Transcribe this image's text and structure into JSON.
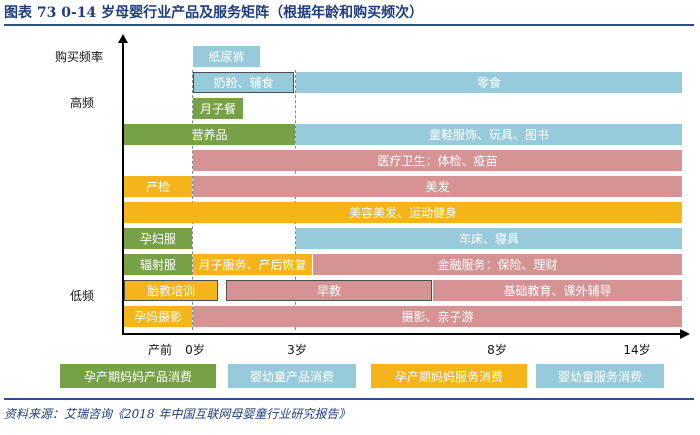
{
  "title": "图表 73   0-14 岁母婴行业产品及服务矩阵（根据年龄和购买频次）",
  "footnote": "资料来源：艾瑞咨询《2018 年中国互联网母婴童行业研究报告》",
  "y_axis": {
    "label": "购买频率",
    "high": "高频",
    "low": "低频"
  },
  "x_axis": {
    "ticks": [
      "产前",
      "0岁",
      "3岁",
      "8岁",
      "14岁"
    ]
  },
  "colors": {
    "green": "#77a146",
    "blue": "#97cbdc",
    "orange": "#f6b41b",
    "red": "#d69393"
  },
  "rows": [
    [
      {
        "label": "纸尿裤",
        "color": "blue"
      }
    ],
    [
      {
        "label": "奶粉、辅食",
        "color": "blue"
      },
      {
        "label": "零食",
        "color": "blue"
      }
    ],
    [
      {
        "label": "月子餐",
        "color": "green"
      }
    ],
    [
      {
        "label": "营养品",
        "color": "green"
      },
      {
        "label": "童鞋服饰、玩具、图书",
        "color": "blue"
      }
    ],
    [
      {
        "label": "医疗卫生：体检、疫苗",
        "color": "red"
      }
    ],
    [
      {
        "label": "产检",
        "color": "orange"
      },
      {
        "label": "美发",
        "color": "red"
      }
    ],
    [
      {
        "label": "美容美发、运动健身",
        "color": "orange"
      }
    ],
    [
      {
        "label": "孕妇服",
        "color": "green"
      },
      {
        "label": "车床、寝具",
        "color": "blue"
      }
    ],
    [
      {
        "label": "辐射服",
        "color": "green"
      },
      {
        "label": "月子服务、产后恢复",
        "color": "orange"
      },
      {
        "label": "金融服务：保险、理财",
        "color": "red"
      }
    ],
    [
      {
        "label": "胎教培训",
        "color": "orange"
      },
      {
        "label": "早教",
        "color": "red"
      },
      {
        "label": "基础教育、课外辅导",
        "color": "red"
      }
    ],
    [
      {
        "label": "孕妈摄影",
        "color": "orange"
      },
      {
        "label": "摄影、亲子游",
        "color": "red"
      }
    ]
  ],
  "legend": [
    {
      "label": "孕产期妈妈产品消费",
      "color": "green"
    },
    {
      "label": "婴幼童产品消费",
      "color": "blue"
    },
    {
      "label": "孕产期妈妈服务消费",
      "color": "orange"
    },
    {
      "label": "婴幼童服务消费",
      "color": "red"
    }
  ]
}
